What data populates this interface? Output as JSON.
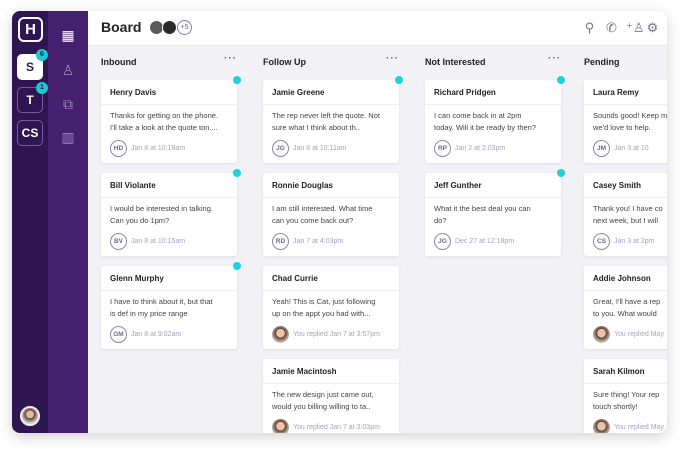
{
  "header": {
    "title": "Board",
    "extra_members": "+5"
  },
  "rail": {
    "logo": "H",
    "workspaces": [
      {
        "label": "S",
        "badge": "6",
        "active": true
      },
      {
        "label": "T",
        "badge": "1",
        "active": false
      },
      {
        "label": "CS",
        "badge": null,
        "active": false
      }
    ]
  },
  "nav_icons": [
    "grid-icon",
    "contacts-icon",
    "conversations-icon",
    "reports-icon"
  ],
  "header_icons": [
    "search-icon",
    "phone-icon",
    "add-user-icon",
    "gear-icon"
  ],
  "colors": {
    "rail": "#2f1552",
    "nav": "#45206f",
    "unread_dot": "#1dd3d8"
  },
  "columns": [
    {
      "title": "Inbound",
      "cards": [
        {
          "name": "Henry Davis",
          "message": "Thanks for getting on the phone.\nI'll take a look at the quote ton....",
          "initials": "HD",
          "time": "Jan 8 at 10:18am",
          "unread": true
        },
        {
          "name": "Bill Violante",
          "message": "I would be interested in talking.\nCan you do 1pm?",
          "initials": "BV",
          "time": "Jan 8 at 10:15am",
          "unread": true
        },
        {
          "name": "Glenn Murphy",
          "message": "I have to think about it, but that\nis def in my price range",
          "initials": "GM",
          "time": "Jan 8 at 9:02am",
          "unread": true
        }
      ]
    },
    {
      "title": "Follow Up",
      "cards": [
        {
          "name": "Jamie Greene",
          "message": "The rep never left the quote. Not\nsure what I think about th..",
          "initials": "JG",
          "time": "Jan 8 at 10:11am",
          "unread": true
        },
        {
          "name": "Ronnie Douglas",
          "message": "I am still interested. What time\ncan you come back out?",
          "initials": "RD",
          "time": "Jan 7 at 4:03pm",
          "unread": false
        },
        {
          "name": "Chad Currie",
          "message": "Yeah! This is Cat, just following\nup on the appt you had with...",
          "initials": "",
          "time": "You replied Jan 7 at 3:57pm",
          "unread": false
        },
        {
          "name": "Jamie Macintosh",
          "message": "The new design just came out,\nwould you billing willing to ta..",
          "initials": "",
          "time": "You replied Jan 7 at 3:03pm",
          "unread": false
        }
      ]
    },
    {
      "title": "Not Interested",
      "cards": [
        {
          "name": "Richard Pridgen",
          "message": "I can come back in at 2pm\ntoday. Will it be ready by then?",
          "initials": "RP",
          "time": "Jan 2 at 2:03pm",
          "unread": true
        },
        {
          "name": "Jeff Gunther",
          "message": "What it the best deal you can\ndo?",
          "initials": "JG",
          "time": "Dec 27 at 12:18pm",
          "unread": true
        }
      ]
    },
    {
      "title": "Pending",
      "cards": [
        {
          "name": "Laura Remy",
          "message": "Sounds good! Keep m\nwe'd love to help.",
          "initials": "JM",
          "time": "Jan 3 at 10",
          "unread": false
        },
        {
          "name": "Casey Smith",
          "message": "Thank you! I have co\nnext week, but I will",
          "initials": "CS",
          "time": "Jan 3 at 2pm",
          "unread": false
        },
        {
          "name": "Addie Johnson",
          "message": "Great, I'll have a rep\nto you. What would",
          "initials": "",
          "time": "You replied May",
          "unread": false
        },
        {
          "name": "Sarah Kilmon",
          "message": "Sure thing! Your rep\ntouch shortly!",
          "initials": "",
          "time": "You replied May",
          "unread": false
        }
      ]
    }
  ]
}
